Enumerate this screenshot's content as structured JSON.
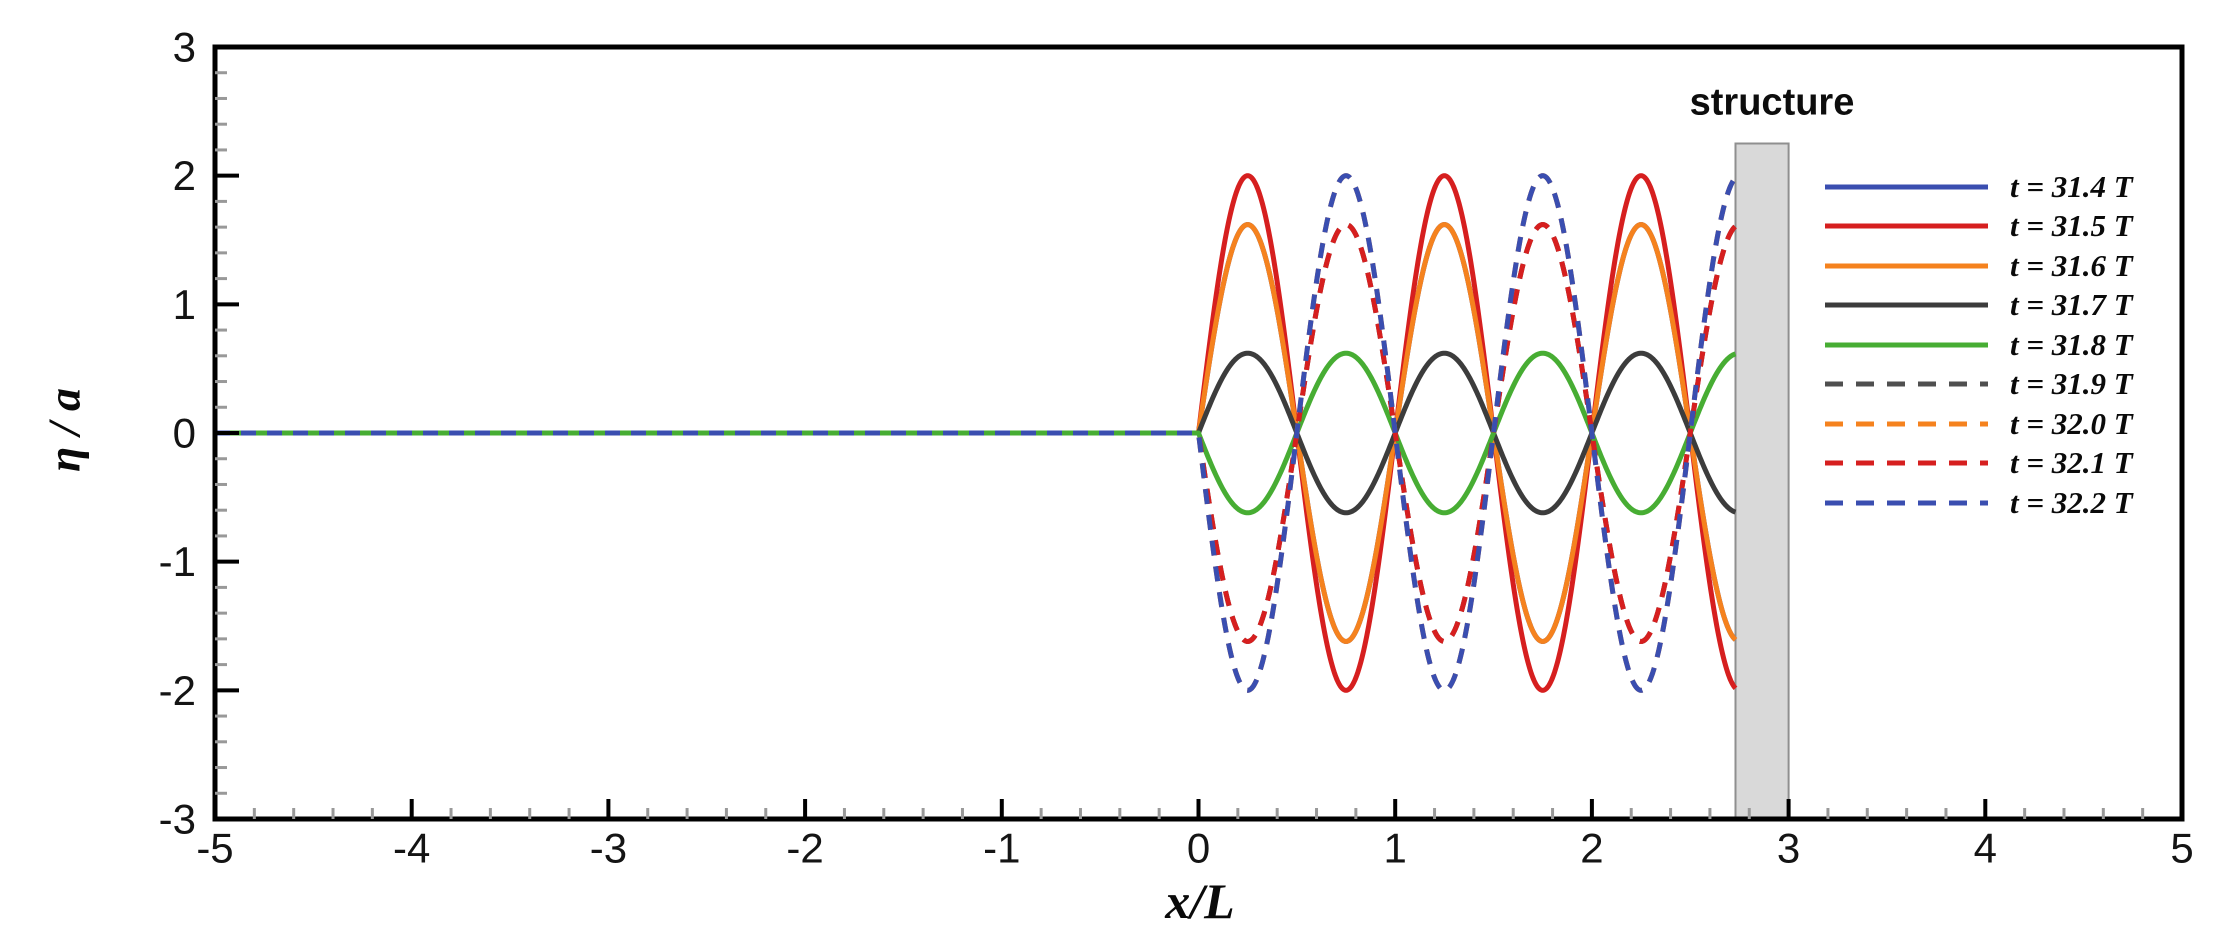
{
  "chart_data": {
    "type": "line",
    "title": "",
    "xlabel": "x/L",
    "ylabel": "η / a",
    "xlim": [
      -5,
      5
    ],
    "ylim": [
      -3,
      3
    ],
    "x_major_ticks": [
      -5,
      -4,
      -3,
      -2,
      -1,
      0,
      1,
      2,
      3,
      4,
      5
    ],
    "x_tick_labels": [
      "-5",
      "-4",
      "-3",
      "-2",
      "-1",
      "0",
      "1",
      "2",
      "3",
      "4",
      "5"
    ],
    "y_major_ticks": [
      -3,
      -2,
      -1,
      0,
      1,
      2,
      3
    ],
    "y_tick_labels": [
      "-3",
      "-2",
      "-1",
      "0",
      "1",
      "2",
      "3"
    ],
    "minor_tick_step": 0.2,
    "grid": false,
    "frame": "full-box",
    "legend_position": "inside-right",
    "model": "eta/a = 0 for x/L < 0 ; eta/a = A*sin(2*pi*x/L) for 0 <= x/L <= 2.73 (structure wall); standing wave, nodes every 0.5, antinodes at 0.25+0.5k",
    "wave_region": {
      "flat_from": -5,
      "flat_to": 0,
      "wave_from": 0,
      "wave_to": 2.73
    },
    "series": [
      {
        "label": "t = 31.4 T",
        "color": "#3a4eb0",
        "style": "solid",
        "A": 1.62,
        "note": "coincides with t = 31.6 T curve (hidden beneath it)"
      },
      {
        "label": "t = 31.5 T",
        "color": "#d61f1f",
        "style": "solid",
        "A": 2.0,
        "note": "largest positive crest, +2 at x/L = 0.25"
      },
      {
        "label": "t = 31.6 T",
        "color": "#f5821e",
        "style": "solid",
        "A": 1.62,
        "note": ""
      },
      {
        "label": "t = 31.7 T",
        "color": "#3c3c3c",
        "style": "solid",
        "A": 0.62,
        "note": ""
      },
      {
        "label": "t = 31.8 T",
        "color": "#47ad33",
        "style": "solid",
        "A": -0.62,
        "note": ""
      },
      {
        "label": "t = 31.9 T",
        "color": "#4f4f4f",
        "style": "dashed",
        "A": -1.62,
        "note": "coincides with t = 32.1 T curve (hidden beneath it)"
      },
      {
        "label": "t = 32.0 T",
        "color": "#f5821e",
        "style": "dashed",
        "A": -2.0,
        "note": "coincides with t = 32.2 T curve (hidden beneath it)"
      },
      {
        "label": "t = 32.1 T",
        "color": "#d61f1f",
        "style": "dashed",
        "A": -1.62,
        "note": ""
      },
      {
        "label": "t = 32.2 T",
        "color": "#3a4eb0",
        "style": "dashed",
        "A": -2.0,
        "note": "deepest dashed trough, -2 at x/L = 0.25"
      }
    ],
    "structure": {
      "label": "structure",
      "x_from": 2.73,
      "x_to": 3.0,
      "y_from": -3,
      "y_to": 2.25,
      "fill": "#d9d9d9",
      "border": "#8f8f8f"
    },
    "colors": {
      "axis": "#000000",
      "major_tick": "#000000",
      "minor_tick": "#999999",
      "tick_label": "#141414",
      "background": "#ffffff"
    }
  }
}
